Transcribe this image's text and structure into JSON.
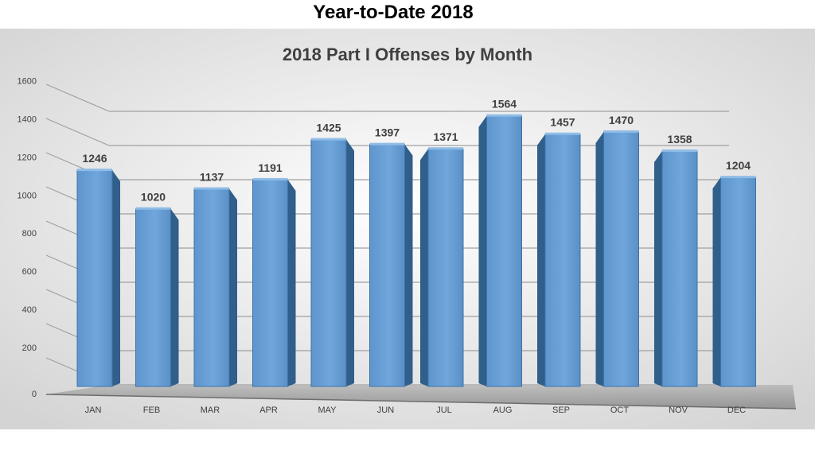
{
  "slide": {
    "title": "Year-to-Date 2018"
  },
  "chart_data": {
    "type": "bar",
    "title": "2018 Part I Offenses by Month",
    "xlabel": "",
    "ylabel": "",
    "categories": [
      "JAN",
      "FEB",
      "MAR",
      "APR",
      "MAY",
      "JUN",
      "JUL",
      "AUG",
      "SEP",
      "OCT",
      "NOV",
      "DEC"
    ],
    "values": [
      1246,
      1020,
      1137,
      1191,
      1425,
      1397,
      1371,
      1564,
      1457,
      1470,
      1358,
      1204
    ],
    "ylim": [
      0,
      1600
    ],
    "yticks": [
      0,
      200,
      400,
      600,
      800,
      1000,
      1200,
      1400,
      1600
    ],
    "grid": true,
    "style": "3d-clustered-column",
    "colors": {
      "bar": "#5b9bd5",
      "bar_side": "#2f5f8a",
      "bar_top": "#8fbce6",
      "grid": "#8c8c8c"
    }
  }
}
